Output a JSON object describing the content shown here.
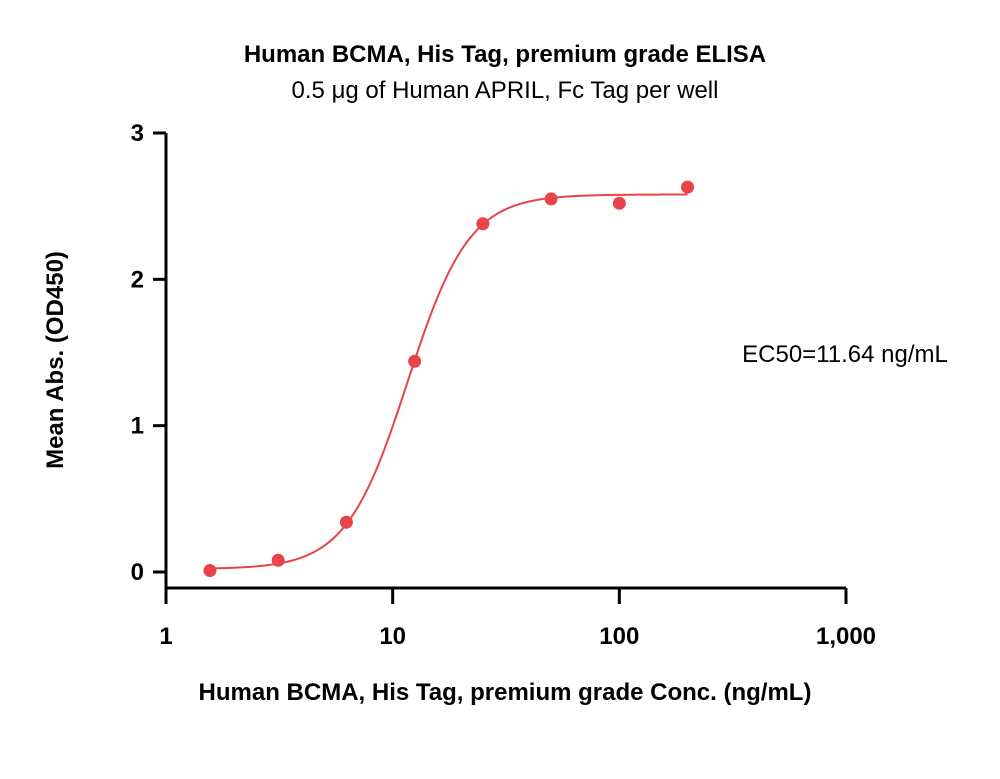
{
  "chart_data": {
    "type": "scatter",
    "title": "Human BCMA, His Tag, premium grade ELISA",
    "subtitle": "0.5 μg of Human APRIL, Fc Tag per well",
    "xlabel": "Human BCMA, His Tag, premium grade Conc. (ng/mL)",
    "ylabel": "Mean Abs. (OD450)",
    "x_scale": "log",
    "xlim": [
      1,
      1000
    ],
    "ylim": [
      0,
      3
    ],
    "x_ticks": [
      1,
      10,
      100,
      1000
    ],
    "x_tick_labels": [
      "1",
      "10",
      "100",
      "1,000"
    ],
    "y_ticks": [
      0,
      1,
      2,
      3
    ],
    "y_tick_labels": [
      "0",
      "1",
      "2",
      "3"
    ],
    "grid": false,
    "series": [
      {
        "color": "#e8434a",
        "points": [
          {
            "x": 1.5625,
            "y": 0.01
          },
          {
            "x": 3.125,
            "y": 0.08
          },
          {
            "x": 6.25,
            "y": 0.34
          },
          {
            "x": 12.5,
            "y": 1.44
          },
          {
            "x": 25,
            "y": 2.38
          },
          {
            "x": 50,
            "y": 2.55
          },
          {
            "x": 100,
            "y": 2.52
          },
          {
            "x": 200,
            "y": 2.63
          }
        ],
        "fit": {
          "model": "4PL",
          "bottom": 0.02,
          "top": 2.58,
          "ec50": 11.64,
          "hill": 3.2,
          "x_range": [
            1.5625,
            200
          ]
        }
      }
    ],
    "annotations": [
      {
        "text": "EC50=11.64 ng/mL"
      }
    ]
  }
}
